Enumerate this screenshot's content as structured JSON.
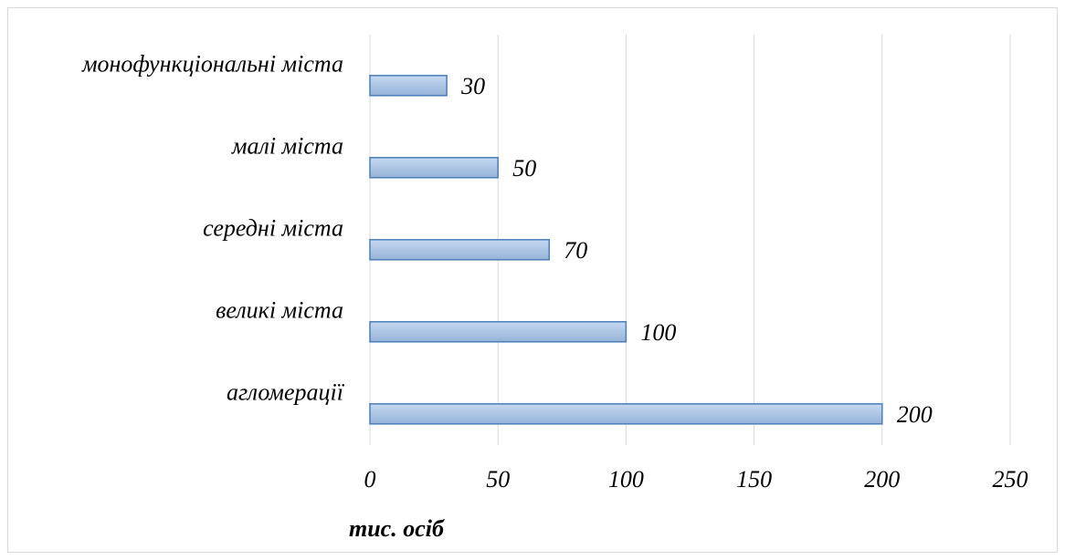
{
  "chart_data": {
    "type": "bar",
    "orientation": "horizontal",
    "categories": [
      "монофункціональні міста",
      "малі міста",
      "середні міста",
      "великі міста",
      "агломерації"
    ],
    "values": [
      30,
      50,
      70,
      100,
      200
    ],
    "data_labels": [
      "30",
      "50",
      "70",
      "100",
      "200"
    ],
    "title": "",
    "xlabel": "тис. осіб",
    "ylabel": "",
    "xlim": [
      0,
      250
    ],
    "x_ticks": [
      "0",
      "50",
      "100",
      "150",
      "200",
      "250"
    ],
    "grid": "vertical",
    "legend": "none",
    "bar_fill_top": "#c6d9f1",
    "bar_fill_bottom": "#95b3d7",
    "bar_stroke": "#4a7ebb"
  }
}
